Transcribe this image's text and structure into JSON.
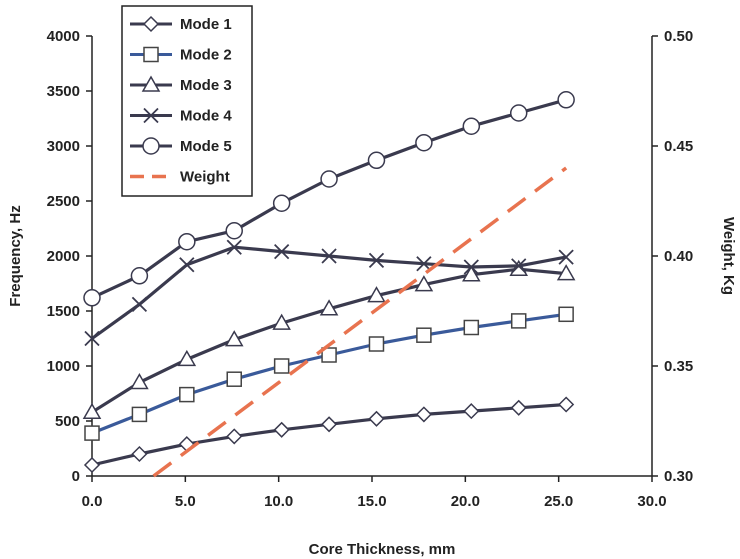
{
  "chart_data": {
    "type": "line",
    "xlabel": "Core Thickness, mm",
    "ylabel": "Frequency, Hz",
    "y2label": "Weight, Kg",
    "xlim": [
      0,
      30
    ],
    "ylim": [
      0,
      4000
    ],
    "y2lim": [
      0.3,
      0.5
    ],
    "x_ticks": [
      "0.0",
      "5.0",
      "10.0",
      "15.0",
      "20.0",
      "25.0",
      "30.0"
    ],
    "y_ticks": [
      "0",
      "500",
      "1000",
      "1500",
      "2000",
      "2500",
      "3000",
      "3500",
      "4000"
    ],
    "y2_ticks": [
      "0.30",
      "0.35",
      "0.40",
      "0.45",
      "0.50"
    ],
    "grid": false,
    "legend_position": "top-left",
    "series": [
      {
        "name": "Mode 1",
        "marker": "diamond",
        "color": "#3a3a4e",
        "axis": "left",
        "x": [
          0,
          2.54,
          5.08,
          7.62,
          10.16,
          12.7,
          15.24,
          17.78,
          20.32,
          22.86,
          25.4
        ],
        "y": [
          100,
          200,
          290,
          360,
          420,
          470,
          520,
          560,
          590,
          620,
          650
        ]
      },
      {
        "name": "Mode 2",
        "marker": "square",
        "color": "#3a5a9a",
        "axis": "left",
        "x": [
          0,
          2.54,
          5.08,
          7.62,
          10.16,
          12.7,
          15.24,
          17.78,
          20.32,
          22.86,
          25.4
        ],
        "y": [
          390,
          560,
          740,
          880,
          1000,
          1100,
          1200,
          1280,
          1350,
          1410,
          1470
        ]
      },
      {
        "name": "Mode 3",
        "marker": "triangle",
        "color": "#3a3a4e",
        "axis": "left",
        "x": [
          0,
          2.54,
          5.08,
          7.62,
          10.16,
          12.7,
          15.24,
          17.78,
          20.32,
          22.86,
          25.4
        ],
        "y": [
          580,
          850,
          1060,
          1240,
          1390,
          1520,
          1640,
          1740,
          1830,
          1880,
          1840
        ]
      },
      {
        "name": "Mode 4",
        "marker": "x",
        "color": "#3a3a4e",
        "axis": "left",
        "x": [
          0,
          2.54,
          5.08,
          7.62,
          10.16,
          12.7,
          15.24,
          17.78,
          20.32,
          22.86,
          25.4
        ],
        "y": [
          1250,
          1560,
          1920,
          2080,
          2040,
          2000,
          1960,
          1930,
          1900,
          1910,
          1990
        ]
      },
      {
        "name": "Mode 5",
        "marker": "circle",
        "color": "#3a3a4e",
        "axis": "left",
        "x": [
          0,
          2.54,
          5.08,
          7.62,
          10.16,
          12.7,
          15.24,
          17.78,
          20.32,
          22.86,
          25.4
        ],
        "y": [
          1620,
          1820,
          2130,
          2230,
          2480,
          2700,
          2870,
          3030,
          3180,
          3300,
          3420
        ]
      },
      {
        "name": "Weight",
        "marker": "none",
        "color": "#e8734f",
        "axis": "right",
        "dash": true,
        "x": [
          3.3,
          25.4
        ],
        "y": [
          0.3,
          0.44
        ]
      }
    ]
  }
}
